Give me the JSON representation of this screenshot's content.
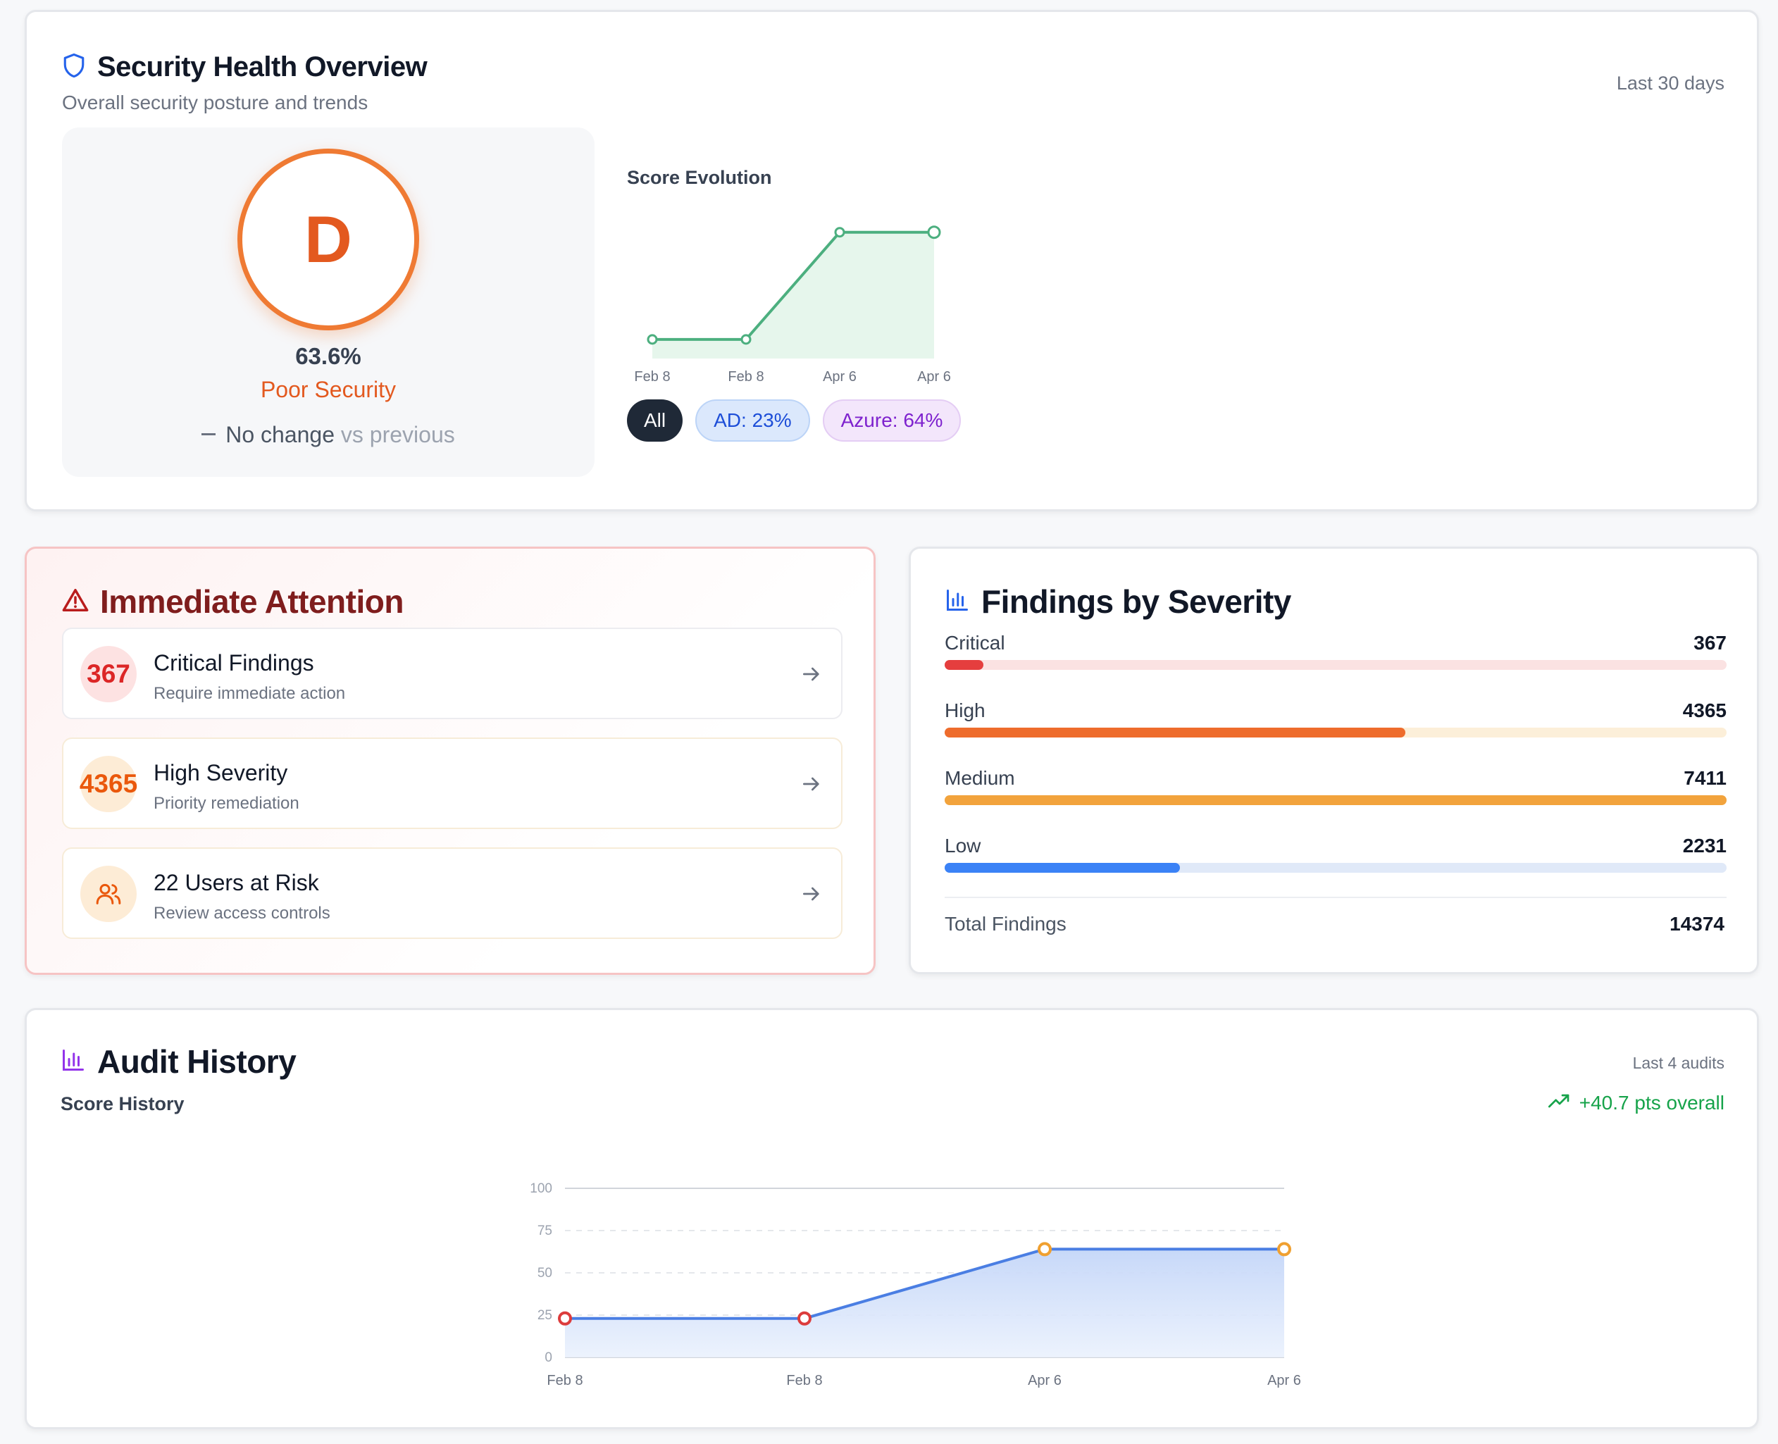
{
  "overview": {
    "title": "Security Health Overview",
    "subtitle": "Overall security posture and trends",
    "period": "Last 30 days",
    "grade": "D",
    "percent": "63.6%",
    "grade_label": "Poor Security",
    "change_text": "No change",
    "change_suffix": "vs previous",
    "evolution_title": "Score Evolution",
    "filters": [
      {
        "label": "All"
      },
      {
        "label": "AD: 23%"
      },
      {
        "label": "Azure: 64%"
      }
    ],
    "colors": {
      "grade": "#e3591f",
      "line": "#4caf7f"
    }
  },
  "attention": {
    "title": "Immediate Attention",
    "items": [
      {
        "badge": "367",
        "title": "Critical Findings",
        "desc": "Require immediate action"
      },
      {
        "badge": "4365",
        "title": "High Severity",
        "desc": "Priority remediation"
      },
      {
        "badge_icon": "users-icon",
        "title": "22 Users at Risk",
        "desc": "Review access controls"
      }
    ]
  },
  "severity": {
    "title": "Findings by Severity",
    "rows": [
      {
        "label": "Critical",
        "value": "367",
        "fraction": 0.0495,
        "color": "#e53e3e",
        "track": "#fbe2e2"
      },
      {
        "label": "High",
        "value": "4365",
        "fraction": 0.589,
        "color": "#ee6c2c",
        "track": "#fcefd9"
      },
      {
        "label": "Medium",
        "value": "7411",
        "fraction": 1.0,
        "color": "#f2a33c",
        "track": "#fcefd9"
      },
      {
        "label": "Low",
        "value": "2231",
        "fraction": 0.301,
        "color": "#3b82f6",
        "track": "#e0e9f8"
      }
    ],
    "total_label": "Total Findings",
    "total_value": "14374"
  },
  "audit": {
    "title": "Audit History",
    "subtitle": "Score History",
    "period": "Last 4 audits",
    "trend": "+40.7 pts overall"
  },
  "chart_data": [
    {
      "type": "area",
      "title": "Score Evolution",
      "categories": [
        "Feb 8",
        "Feb 8",
        "Apr 6",
        "Apr 6"
      ],
      "values": [
        23,
        23,
        64,
        64
      ],
      "ylim": [
        20,
        65
      ],
      "grid": false
    },
    {
      "type": "area",
      "title": "Score History",
      "categories": [
        "Feb 8",
        "Feb 8",
        "Apr 6",
        "Apr 6"
      ],
      "values": [
        23,
        23,
        64,
        64
      ],
      "ylim": [
        0,
        100
      ],
      "yticks": [
        "0",
        "25",
        "50",
        "75",
        "100"
      ],
      "point_colors": [
        "#dc3c3c",
        "#dc3c3c",
        "#f0a030",
        "#f0a030"
      ],
      "grid": true
    }
  ]
}
